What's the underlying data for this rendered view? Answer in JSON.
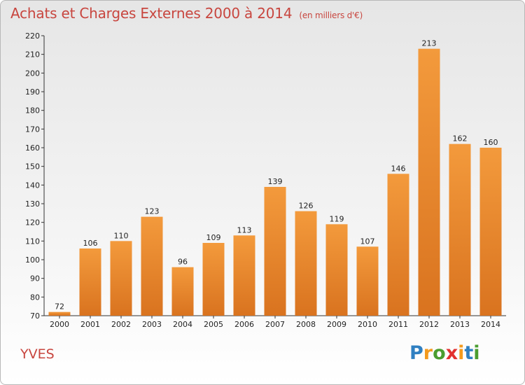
{
  "chart_data": {
    "type": "bar",
    "title": "Achats et Charges Externes 2000 à 2014",
    "subtitle": "(en milliers d'€)",
    "categories": [
      "2000",
      "2001",
      "2002",
      "2003",
      "2004",
      "2005",
      "2006",
      "2007",
      "2008",
      "2009",
      "2010",
      "2011",
      "2012",
      "2013",
      "2014"
    ],
    "values": [
      72,
      106,
      110,
      123,
      96,
      109,
      113,
      139,
      126,
      119,
      107,
      146,
      213,
      162,
      160
    ],
    "ylim": [
      70,
      220
    ],
    "yticks": [
      70,
      80,
      90,
      100,
      110,
      120,
      130,
      140,
      150,
      160,
      170,
      180,
      190,
      200,
      210,
      220
    ],
    "grid": false,
    "bar_color": "#f39a3c",
    "bar_color_dark": "#d9731f"
  },
  "commune": "YVES",
  "logo": {
    "text": "Proxiti",
    "letters": [
      "P",
      "r",
      "o",
      "x",
      "i",
      "t",
      "i"
    ],
    "colors": [
      "#2f7fc1",
      "#f39a1e",
      "#4a9d2f",
      "#e2312f",
      "#f39a1e",
      "#2f7fc1",
      "#4a9d2f"
    ]
  }
}
